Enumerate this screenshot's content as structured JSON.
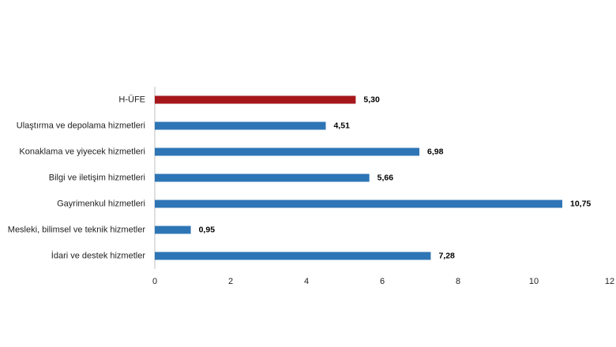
{
  "chart_data": {
    "type": "hbar",
    "categories": [
      "H-ÜFE",
      "Ulaştırma ve depolama hizmetleri",
      "Konaklama ve yiyecek hizmetleri",
      "Bilgi ve iletişim hizmetleri",
      "Gayrimenkul hizmetleri",
      "Mesleki, bilimsel ve teknik hizmetler",
      "İdari ve destek hizmetler"
    ],
    "values": [
      5.3,
      4.51,
      6.98,
      5.66,
      10.75,
      0.95,
      7.28
    ],
    "value_labels": [
      "5,30",
      "4,51",
      "6,98",
      "5,66",
      "10,75",
      "0,95",
      "7,28"
    ],
    "colors": [
      "#a6171c",
      "#2e75b6",
      "#2e75b6",
      "#2e75b6",
      "#2e75b6",
      "#2e75b6",
      "#2e75b6"
    ],
    "xlim": [
      0,
      12
    ],
    "xticks": [
      0,
      2,
      4,
      6,
      8,
      10,
      12
    ],
    "grid": false
  }
}
